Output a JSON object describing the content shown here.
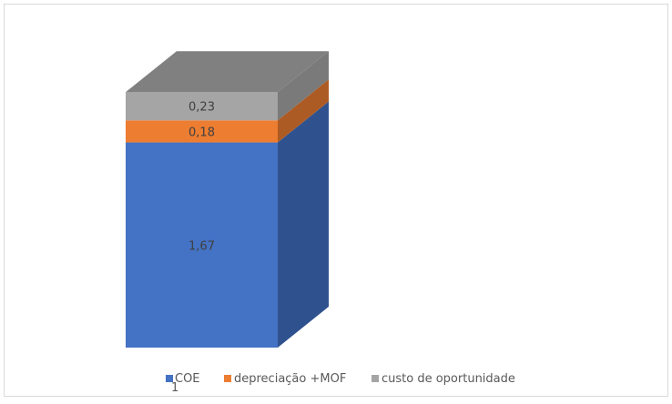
{
  "chart_data": {
    "type": "bar",
    "subtype": "stacked-3d",
    "categories": [
      "1"
    ],
    "series": [
      {
        "name": "COE",
        "values": [
          1.67
        ],
        "label": "1,67",
        "color": "#4472c4",
        "side": "#2f528f"
      },
      {
        "name": "depreciação +MOF",
        "values": [
          0.18
        ],
        "label": "0,18",
        "color": "#ed7d31",
        "side": "#ad5b24"
      },
      {
        "name": "custo de oportunidade",
        "values": [
          0.23
        ],
        "label": "0,23",
        "color": "#a5a5a5",
        "side": "#7a7a7a",
        "top": "#808080"
      }
    ],
    "title": "",
    "xlabel": "",
    "ylabel": "",
    "legend": "bottom",
    "grid": false
  }
}
